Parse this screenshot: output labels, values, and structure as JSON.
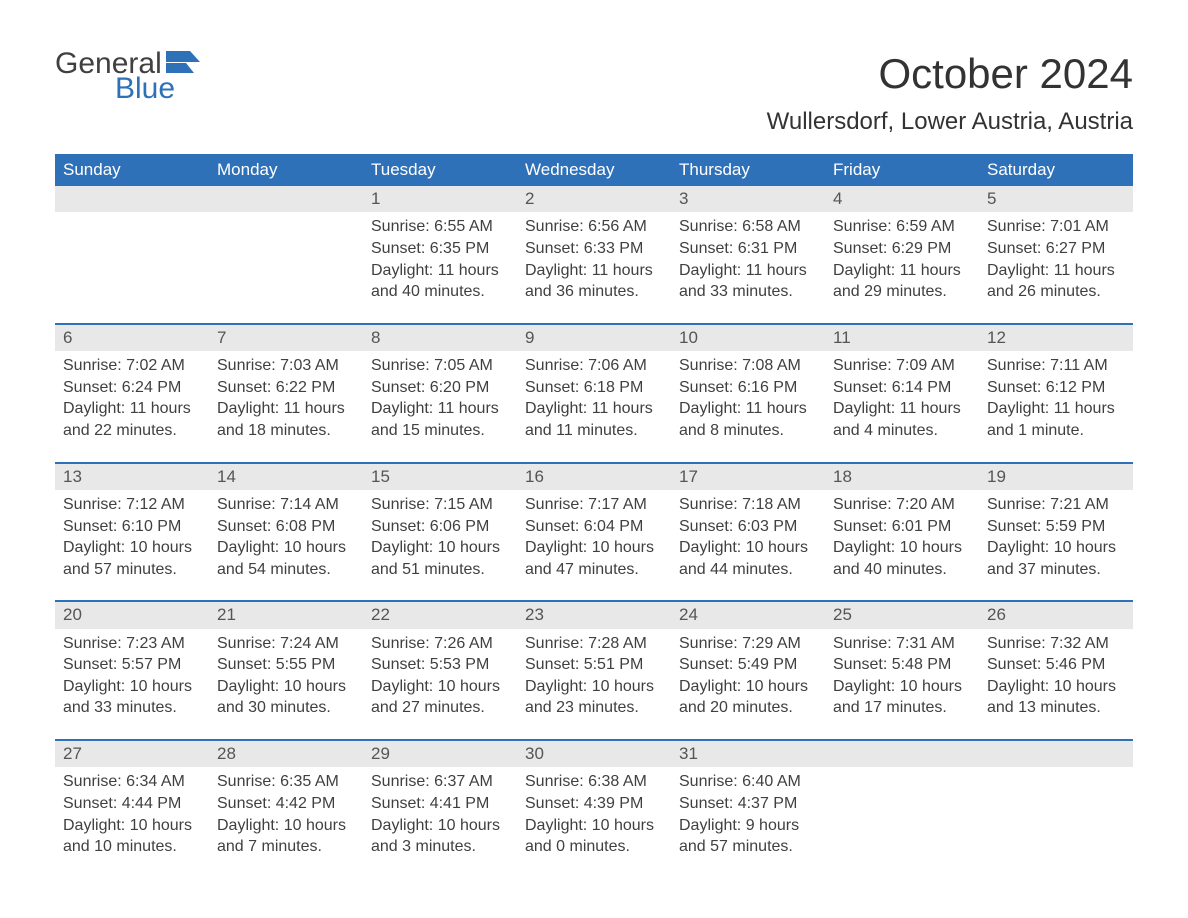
{
  "logo": {
    "word1": "General",
    "word2": "Blue",
    "flag_color": "#2f71b8"
  },
  "title": "October 2024",
  "location": "Wullersdorf, Lower Austria, Austria",
  "colors": {
    "header_bg": "#2f71b8",
    "header_text": "#ffffff",
    "daynum_bg": "#e8e8e8",
    "row_border": "#2f71b8",
    "body_text": "#404040",
    "page_bg": "#ffffff"
  },
  "typography": {
    "title_fontsize": 42,
    "location_fontsize": 24,
    "header_fontsize": 17,
    "daynum_fontsize": 17,
    "body_fontsize": 16,
    "font_family": "Arial"
  },
  "layout": {
    "columns": 7,
    "rows": 5
  },
  "day_headers": [
    "Sunday",
    "Monday",
    "Tuesday",
    "Wednesday",
    "Thursday",
    "Friday",
    "Saturday"
  ],
  "weeks": [
    [
      {
        "blank": true
      },
      {
        "blank": true
      },
      {
        "day": "1",
        "sunrise": "Sunrise: 6:55 AM",
        "sunset": "Sunset: 6:35 PM",
        "daylight1": "Daylight: 11 hours",
        "daylight2": "and 40 minutes."
      },
      {
        "day": "2",
        "sunrise": "Sunrise: 6:56 AM",
        "sunset": "Sunset: 6:33 PM",
        "daylight1": "Daylight: 11 hours",
        "daylight2": "and 36 minutes."
      },
      {
        "day": "3",
        "sunrise": "Sunrise: 6:58 AM",
        "sunset": "Sunset: 6:31 PM",
        "daylight1": "Daylight: 11 hours",
        "daylight2": "and 33 minutes."
      },
      {
        "day": "4",
        "sunrise": "Sunrise: 6:59 AM",
        "sunset": "Sunset: 6:29 PM",
        "daylight1": "Daylight: 11 hours",
        "daylight2": "and 29 minutes."
      },
      {
        "day": "5",
        "sunrise": "Sunrise: 7:01 AM",
        "sunset": "Sunset: 6:27 PM",
        "daylight1": "Daylight: 11 hours",
        "daylight2": "and 26 minutes."
      }
    ],
    [
      {
        "day": "6",
        "sunrise": "Sunrise: 7:02 AM",
        "sunset": "Sunset: 6:24 PM",
        "daylight1": "Daylight: 11 hours",
        "daylight2": "and 22 minutes."
      },
      {
        "day": "7",
        "sunrise": "Sunrise: 7:03 AM",
        "sunset": "Sunset: 6:22 PM",
        "daylight1": "Daylight: 11 hours",
        "daylight2": "and 18 minutes."
      },
      {
        "day": "8",
        "sunrise": "Sunrise: 7:05 AM",
        "sunset": "Sunset: 6:20 PM",
        "daylight1": "Daylight: 11 hours",
        "daylight2": "and 15 minutes."
      },
      {
        "day": "9",
        "sunrise": "Sunrise: 7:06 AM",
        "sunset": "Sunset: 6:18 PM",
        "daylight1": "Daylight: 11 hours",
        "daylight2": "and 11 minutes."
      },
      {
        "day": "10",
        "sunrise": "Sunrise: 7:08 AM",
        "sunset": "Sunset: 6:16 PM",
        "daylight1": "Daylight: 11 hours",
        "daylight2": "and 8 minutes."
      },
      {
        "day": "11",
        "sunrise": "Sunrise: 7:09 AM",
        "sunset": "Sunset: 6:14 PM",
        "daylight1": "Daylight: 11 hours",
        "daylight2": "and 4 minutes."
      },
      {
        "day": "12",
        "sunrise": "Sunrise: 7:11 AM",
        "sunset": "Sunset: 6:12 PM",
        "daylight1": "Daylight: 11 hours",
        "daylight2": "and 1 minute."
      }
    ],
    [
      {
        "day": "13",
        "sunrise": "Sunrise: 7:12 AM",
        "sunset": "Sunset: 6:10 PM",
        "daylight1": "Daylight: 10 hours",
        "daylight2": "and 57 minutes."
      },
      {
        "day": "14",
        "sunrise": "Sunrise: 7:14 AM",
        "sunset": "Sunset: 6:08 PM",
        "daylight1": "Daylight: 10 hours",
        "daylight2": "and 54 minutes."
      },
      {
        "day": "15",
        "sunrise": "Sunrise: 7:15 AM",
        "sunset": "Sunset: 6:06 PM",
        "daylight1": "Daylight: 10 hours",
        "daylight2": "and 51 minutes."
      },
      {
        "day": "16",
        "sunrise": "Sunrise: 7:17 AM",
        "sunset": "Sunset: 6:04 PM",
        "daylight1": "Daylight: 10 hours",
        "daylight2": "and 47 minutes."
      },
      {
        "day": "17",
        "sunrise": "Sunrise: 7:18 AM",
        "sunset": "Sunset: 6:03 PM",
        "daylight1": "Daylight: 10 hours",
        "daylight2": "and 44 minutes."
      },
      {
        "day": "18",
        "sunrise": "Sunrise: 7:20 AM",
        "sunset": "Sunset: 6:01 PM",
        "daylight1": "Daylight: 10 hours",
        "daylight2": "and 40 minutes."
      },
      {
        "day": "19",
        "sunrise": "Sunrise: 7:21 AM",
        "sunset": "Sunset: 5:59 PM",
        "daylight1": "Daylight: 10 hours",
        "daylight2": "and 37 minutes."
      }
    ],
    [
      {
        "day": "20",
        "sunrise": "Sunrise: 7:23 AM",
        "sunset": "Sunset: 5:57 PM",
        "daylight1": "Daylight: 10 hours",
        "daylight2": "and 33 minutes."
      },
      {
        "day": "21",
        "sunrise": "Sunrise: 7:24 AM",
        "sunset": "Sunset: 5:55 PM",
        "daylight1": "Daylight: 10 hours",
        "daylight2": "and 30 minutes."
      },
      {
        "day": "22",
        "sunrise": "Sunrise: 7:26 AM",
        "sunset": "Sunset: 5:53 PM",
        "daylight1": "Daylight: 10 hours",
        "daylight2": "and 27 minutes."
      },
      {
        "day": "23",
        "sunrise": "Sunrise: 7:28 AM",
        "sunset": "Sunset: 5:51 PM",
        "daylight1": "Daylight: 10 hours",
        "daylight2": "and 23 minutes."
      },
      {
        "day": "24",
        "sunrise": "Sunrise: 7:29 AM",
        "sunset": "Sunset: 5:49 PM",
        "daylight1": "Daylight: 10 hours",
        "daylight2": "and 20 minutes."
      },
      {
        "day": "25",
        "sunrise": "Sunrise: 7:31 AM",
        "sunset": "Sunset: 5:48 PM",
        "daylight1": "Daylight: 10 hours",
        "daylight2": "and 17 minutes."
      },
      {
        "day": "26",
        "sunrise": "Sunrise: 7:32 AM",
        "sunset": "Sunset: 5:46 PM",
        "daylight1": "Daylight: 10 hours",
        "daylight2": "and 13 minutes."
      }
    ],
    [
      {
        "day": "27",
        "sunrise": "Sunrise: 6:34 AM",
        "sunset": "Sunset: 4:44 PM",
        "daylight1": "Daylight: 10 hours",
        "daylight2": "and 10 minutes."
      },
      {
        "day": "28",
        "sunrise": "Sunrise: 6:35 AM",
        "sunset": "Sunset: 4:42 PM",
        "daylight1": "Daylight: 10 hours",
        "daylight2": "and 7 minutes."
      },
      {
        "day": "29",
        "sunrise": "Sunrise: 6:37 AM",
        "sunset": "Sunset: 4:41 PM",
        "daylight1": "Daylight: 10 hours",
        "daylight2": "and 3 minutes."
      },
      {
        "day": "30",
        "sunrise": "Sunrise: 6:38 AM",
        "sunset": "Sunset: 4:39 PM",
        "daylight1": "Daylight: 10 hours",
        "daylight2": "and 0 minutes."
      },
      {
        "day": "31",
        "sunrise": "Sunrise: 6:40 AM",
        "sunset": "Sunset: 4:37 PM",
        "daylight1": "Daylight: 9 hours",
        "daylight2": "and 57 minutes."
      },
      {
        "blank": true
      },
      {
        "blank": true
      }
    ]
  ]
}
